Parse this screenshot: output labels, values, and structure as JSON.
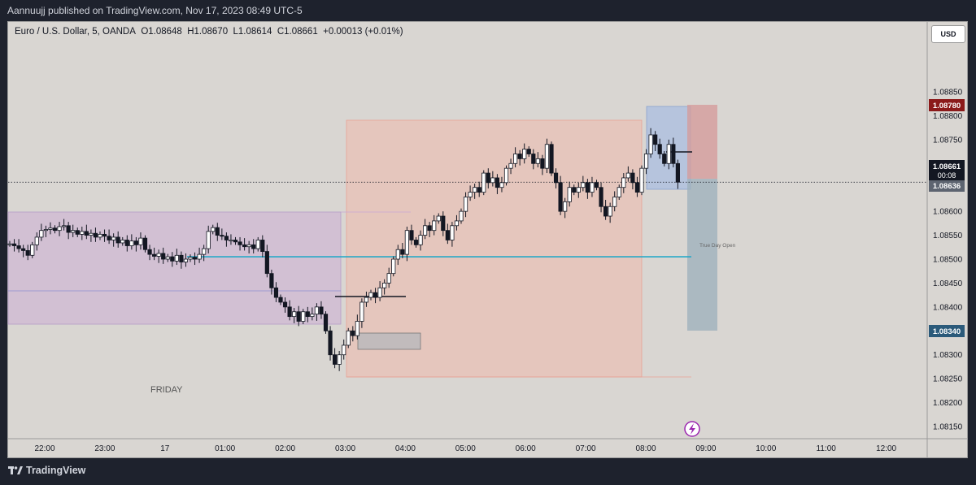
{
  "header": {
    "published_text": "Aannuujj published on TradingView.com, Nov 17, 2023 08:49 UTC-5"
  },
  "legend": {
    "symbol_text": "Euro / U.S. Dollar, 5, OANDA",
    "open": "O1.08648",
    "high": "H1.08670",
    "low": "L1.08614",
    "close": "C1.08661",
    "change": "+0.00013 (+0.01%)"
  },
  "currency_button": "USD",
  "annotations": {
    "day_label": "FRIDAY",
    "true_day_open": "True Day Open"
  },
  "price_badges": {
    "stop": "1.08780",
    "current": "1.08661",
    "countdown": "00:08",
    "bid": "1.08636",
    "target": "1.08340"
  },
  "chart_data": {
    "type": "candlestick",
    "symbol": "EURUSD",
    "interval": "5",
    "broker": "OANDA",
    "price_ticks": [
      "1.08850",
      "1.08800",
      "1.08750",
      "1.08700",
      "1.08650",
      "1.08600",
      "1.08550",
      "1.08500",
      "1.08450",
      "1.08400",
      "1.08350",
      "1.08300",
      "1.08250",
      "1.08200",
      "1.08150"
    ],
    "time_ticks": [
      "22:00",
      "23:00",
      "17",
      "01:00",
      "02:00",
      "03:00",
      "04:00",
      "05:00",
      "06:00",
      "07:00",
      "08:00",
      "09:00",
      "10:00",
      "11:00",
      "12:00"
    ],
    "ylim": [
      1.0813,
      1.0891
    ],
    "last_price": 1.08661,
    "true_day_open": 1.08505,
    "position": {
      "entry": 1.0863,
      "stop": 1.0878,
      "target": 1.0834
    }
  },
  "colors": {
    "background": "#d9d6d2",
    "candle": "#131722",
    "true_day_open_line": "#26a9c7",
    "stop_badge": "#8b1a1a",
    "target_badge": "#2b5a7a",
    "asian_box": "#c9a6d4",
    "london_box": "#f1b5a8"
  },
  "footer": {
    "brand": "TradingView"
  }
}
